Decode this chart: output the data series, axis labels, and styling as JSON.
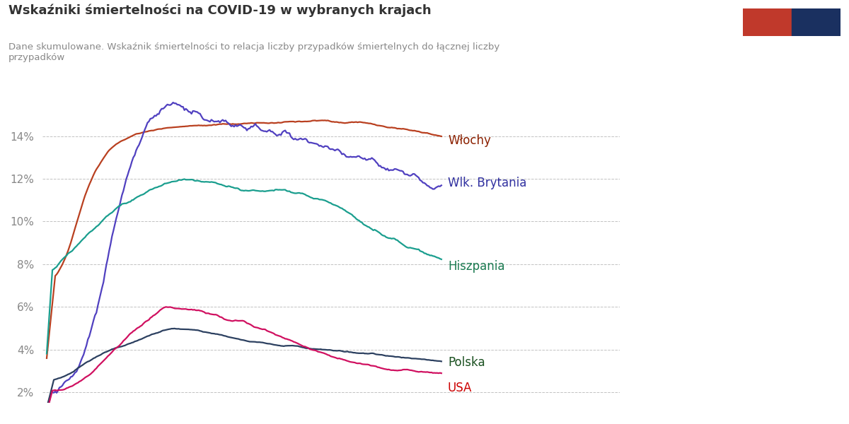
{
  "title": "Wskaźniki śmiertelności na COVID-19 w wybranych krajach",
  "subtitle": "Dane skumulowane. Wskaźnik śmiertelności to relacja liczby przypadków śmiertelnych do łącznej liczby\nprzypadków",
  "background_color": "#ffffff",
  "plot_bg_color": "#ffffff",
  "grid_color": "#bbbbbb",
  "ylim": [
    0.015,
    0.168
  ],
  "yticks": [
    0.02,
    0.04,
    0.06,
    0.08,
    0.1,
    0.12,
    0.14
  ],
  "ytick_labels": [
    "2%",
    "4%",
    "6%",
    "8%",
    "10%",
    "12%",
    "14%"
  ],
  "colors": {
    "italy": "#b94020",
    "uk": "#5040c0",
    "spain": "#1a9e8e",
    "poland": "#2c4060",
    "usa": "#d01060"
  },
  "labels": {
    "italy": "Włochy",
    "uk": "Wlk. Brytania",
    "spain": "Hiszpania",
    "poland": "Polska",
    "usa": "USA"
  },
  "label_colors": {
    "italy": "#8b2000",
    "uk": "#3030a0",
    "spain": "#1a7a50",
    "poland": "#1a5020",
    "usa": "#cc0000"
  },
  "corner_box_color1": "#c0392b",
  "corner_box_color2": "#1a3060"
}
